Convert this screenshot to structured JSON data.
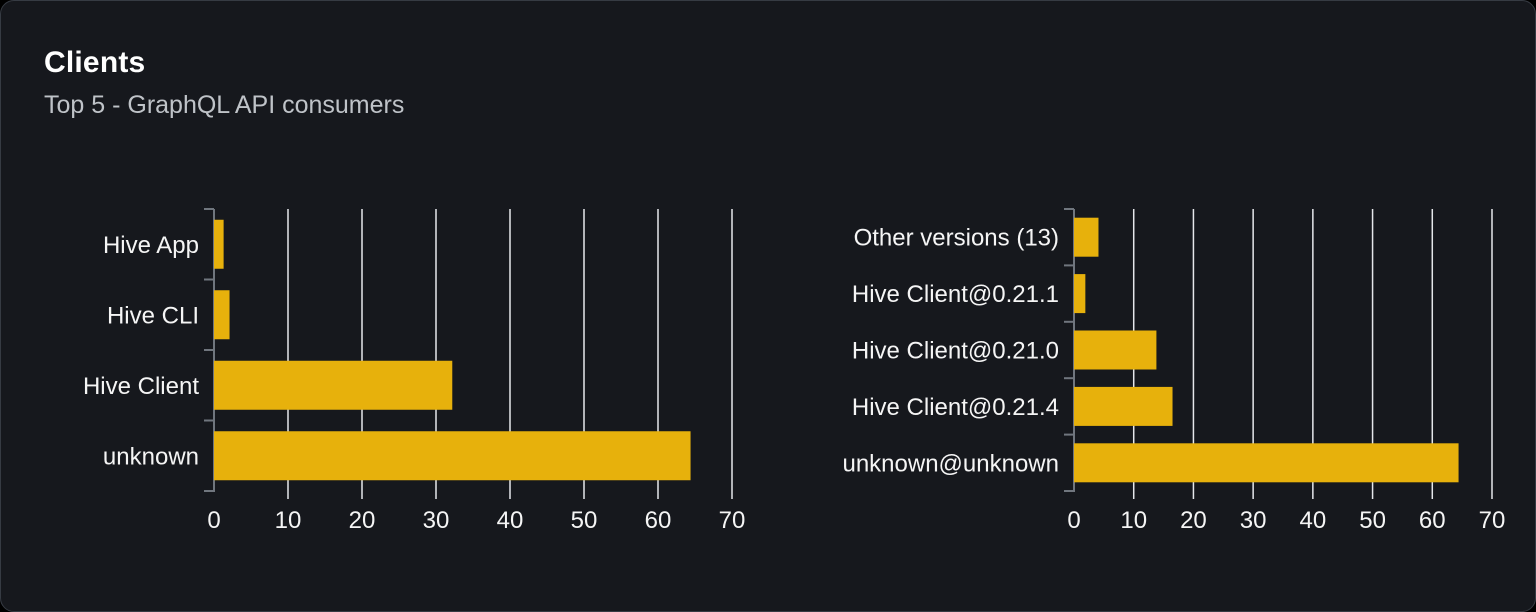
{
  "card": {
    "title": "Clients",
    "subtitle": "Top 5 - GraphQL API consumers"
  },
  "colors": {
    "page_bg": "#000000",
    "card_bg": "#16181d",
    "card_border": "#363b43",
    "bar": "#e7b10c",
    "grid": "#e5e7eb",
    "axis": "#70767e",
    "text": "#f5f5f5",
    "subtitle_text": "#bfc3c8"
  },
  "chart_data": [
    {
      "type": "bar",
      "orientation": "horizontal",
      "name": "top-5-clients",
      "category_order": "top-to-bottom",
      "categories": [
        "Hive App",
        "Hive CLI",
        "Hive Client",
        "unknown"
      ],
      "values": [
        1.3,
        2.1,
        32.2,
        64.4
      ],
      "xlim": [
        0,
        70
      ],
      "ticks": [
        0,
        10,
        20,
        30,
        40,
        50,
        60,
        70
      ],
      "grid": true,
      "legend": "none",
      "title": ""
    },
    {
      "type": "bar",
      "orientation": "horizontal",
      "name": "top-5-client-versions",
      "category_order": "top-to-bottom",
      "categories": [
        "Other versions (13)",
        "Hive Client@0.21.1",
        "Hive Client@0.21.0",
        "Hive Client@0.21.4",
        "unknown@unknown"
      ],
      "values": [
        4.1,
        1.9,
        13.8,
        16.5,
        64.4
      ],
      "xlim": [
        0,
        70
      ],
      "ticks": [
        0,
        10,
        20,
        30,
        40,
        50,
        60,
        70
      ],
      "grid": true,
      "legend": "none",
      "title": ""
    }
  ]
}
